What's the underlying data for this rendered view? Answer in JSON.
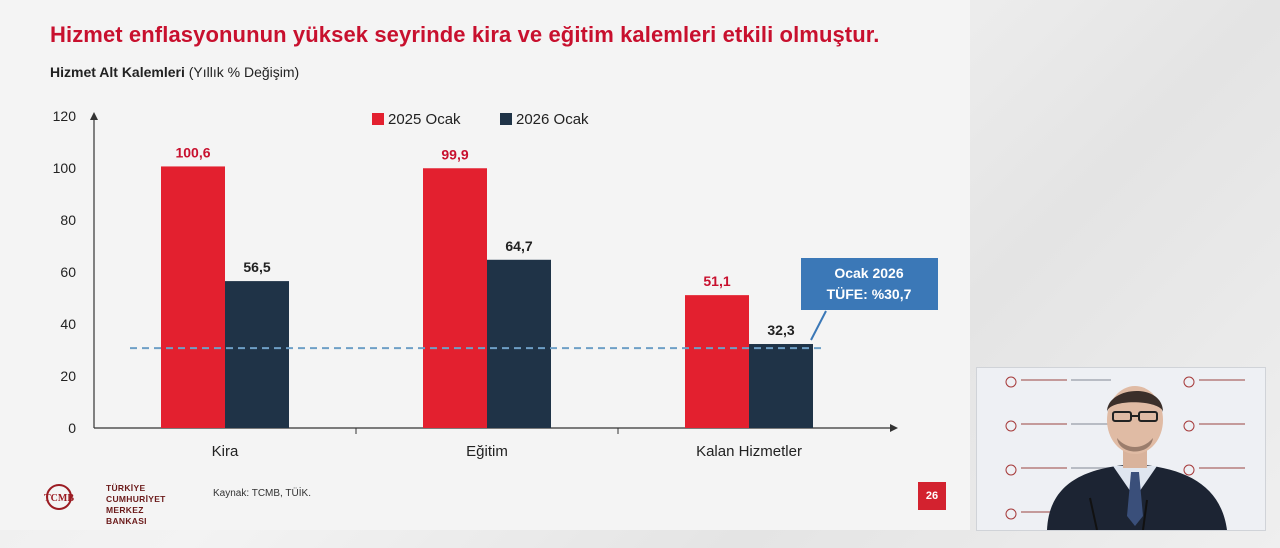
{
  "slide": {
    "title": "Hizmet enflasyonunun yüksek seyrinde kira ve eğitim kalemleri etkili olmuştur.",
    "subtitle_bold": "Hizmet Alt Kalemleri",
    "subtitle_rest": " (Yıllık % Değişim)",
    "source": "Kaynak: TCMB, TÜİK.",
    "page_number": "26",
    "logo_line1": "TÜRKİYE CUMHURİYET",
    "logo_line2": "MERKEZ BANKASI",
    "logo_mark": "TCMB"
  },
  "colors": {
    "title": "#c8102e",
    "series_2025": "#e3202f",
    "series_2026": "#1f3347",
    "reference_line": "#6e9fc6",
    "callout_bg": "#3b78b7",
    "page_badge": "#d3222f"
  },
  "chart_data": {
    "type": "bar",
    "categories": [
      "Kira",
      "Eğitim",
      "Kalan Hizmetler"
    ],
    "series": [
      {
        "name": "2025 Ocak",
        "values": [
          100.6,
          99.9,
          51.1
        ],
        "labels": [
          "100,6",
          "99,9",
          "51,1"
        ]
      },
      {
        "name": "2026 Ocak",
        "values": [
          56.5,
          64.7,
          32.3
        ],
        "labels": [
          "56,5",
          "64,7",
          "32,3"
        ]
      }
    ],
    "ylim": [
      0,
      120
    ],
    "yticks": [
      0,
      20,
      40,
      60,
      80,
      100,
      120
    ],
    "reference_line": {
      "value": 30.7,
      "style": "dashed"
    },
    "callout": {
      "line1": "Ocak 2026",
      "line2": "TÜFE:  %30,7"
    },
    "legend_position": "top-center",
    "grid": false
  },
  "video_overlay": {
    "backdrop_text": "TÜRKİYE CUMHURİYET MERKEZ BANKASI"
  }
}
